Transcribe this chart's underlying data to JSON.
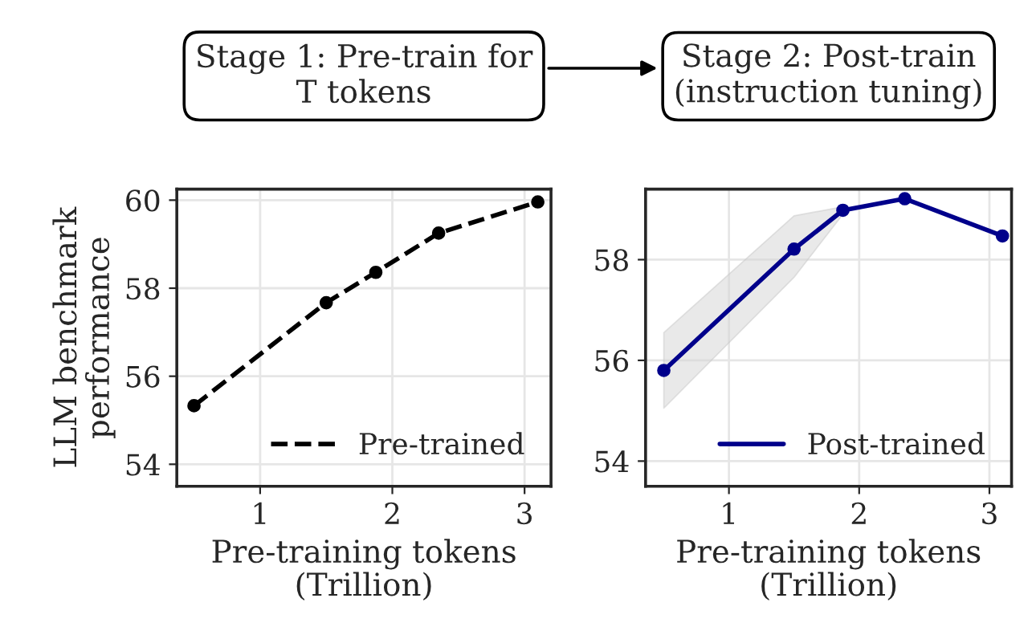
{
  "chart_data": [
    {
      "type": "line",
      "title": "Stage 1: Pre-train for\nT tokens",
      "xlabel": "Pre-training tokens\n(Trillion)",
      "ylabel": "LLM benchmark\nperformance",
      "x": [
        0.5,
        1.5,
        1.875,
        2.35,
        3.1
      ],
      "series": [
        {
          "name": "Pre-trained",
          "color": "#000000",
          "values": [
            55.33,
            57.67,
            58.36,
            59.25,
            59.96
          ],
          "line_style": "dashed"
        }
      ],
      "xlim": [
        0.37,
        3.2
      ],
      "ylim": [
        53.5,
        60.25
      ],
      "xticks": [
        1,
        2,
        3
      ],
      "yticks": [
        54,
        56,
        58,
        60
      ],
      "grid": true,
      "legend": "bottom right",
      "marker": "circle"
    },
    {
      "type": "line",
      "title": "Stage 2: Post-train\n(instruction tuning)",
      "xlabel": "Pre-training tokens\n(Trillion)",
      "x": [
        0.5,
        1.5,
        1.875,
        2.35,
        3.1
      ],
      "series": [
        {
          "name": "Post-trained",
          "color": "#00008b",
          "values": [
            55.8,
            58.21,
            58.98,
            59.21,
            58.47
          ],
          "line_style": "solid",
          "lower": [
            55.05,
            57.65,
            58.9,
            null,
            null
          ],
          "upper": [
            56.55,
            58.87,
            59.05,
            null,
            null
          ]
        }
      ],
      "xlim": [
        0.36,
        3.17
      ],
      "ylim": [
        53.5,
        59.4
      ],
      "xticks": [
        1,
        2,
        3
      ],
      "yticks": [
        54,
        56,
        58
      ],
      "grid": true,
      "legend": "bottom right",
      "marker": "circle"
    }
  ]
}
